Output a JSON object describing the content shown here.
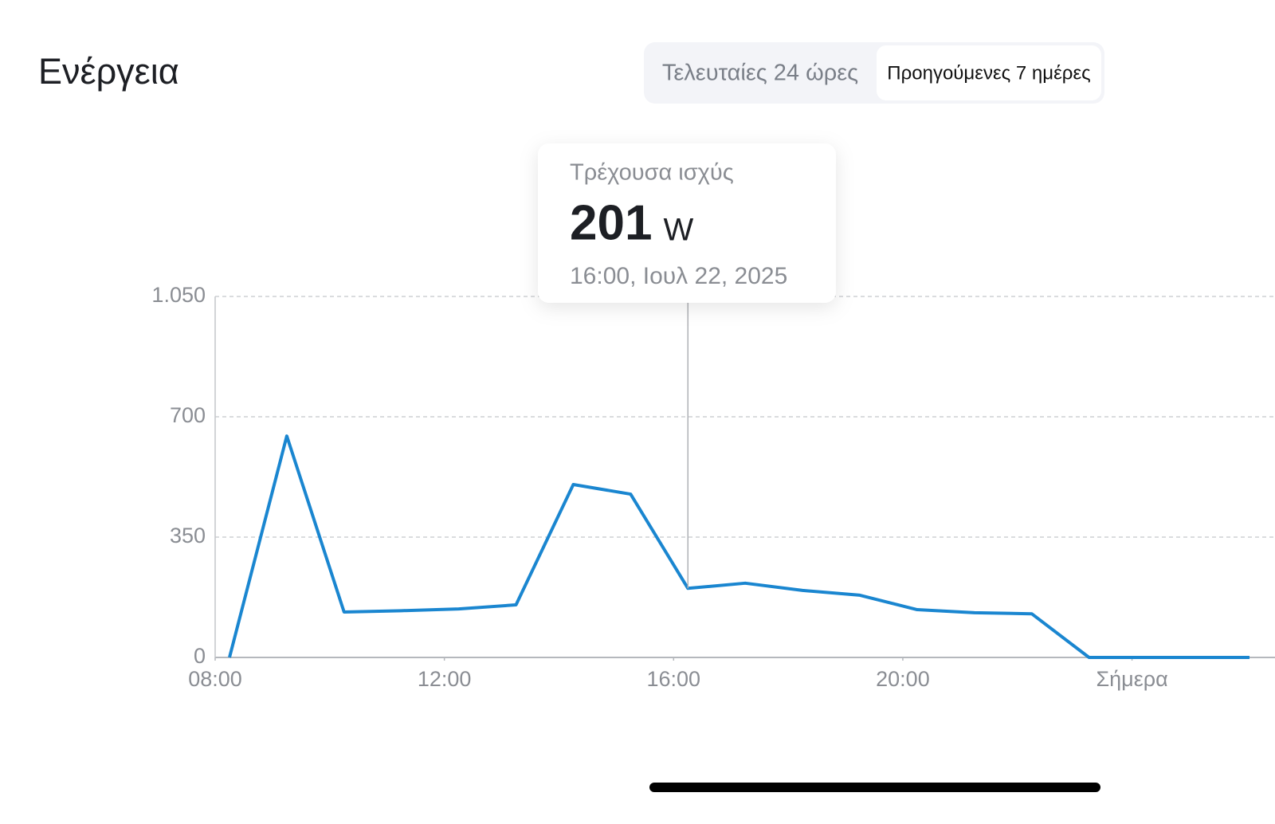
{
  "header": {
    "title": "Ενέργεια"
  },
  "segmented_control": {
    "options": [
      "Τελευταίες 24 ώρες",
      "Προηγούμενες 7 ημέρες"
    ],
    "selected": 1
  },
  "tooltip": {
    "label": "Τρέχουσα ισχύς",
    "value": 201,
    "unit": "W",
    "time": "16:00, Ιουλ 22, 2025"
  },
  "chart_data": {
    "type": "line",
    "x": [
      8.25,
      9.25,
      10.25,
      11.25,
      12.25,
      13.25,
      14.25,
      15.25,
      16.25,
      17.25,
      18.25,
      19.25,
      20.25,
      21.25,
      22.25,
      23.25,
      24.25,
      25.25,
      26.25
    ],
    "series": [
      {
        "color": "#1a86d0",
        "values": [
          0,
          644,
          132,
          136,
          141,
          153,
          503,
          475,
          201,
          216,
          195,
          181,
          139,
          130,
          127,
          0,
          0,
          0,
          0
        ]
      }
    ],
    "xlim": [
      8,
      26.05
    ],
    "xticks": [
      {
        "value": 8,
        "label": "08:00"
      },
      {
        "value": 12,
        "label": "12:00"
      },
      {
        "value": 16,
        "label": "16:00"
      },
      {
        "value": 20,
        "label": "20:00"
      },
      {
        "value": 24,
        "label": "Σήμερα"
      }
    ],
    "ylim": [
      0,
      1050
    ],
    "yticks": [
      0,
      350,
      700,
      {
        "value": 1050,
        "label": "1.050"
      }
    ],
    "grid": true
  }
}
